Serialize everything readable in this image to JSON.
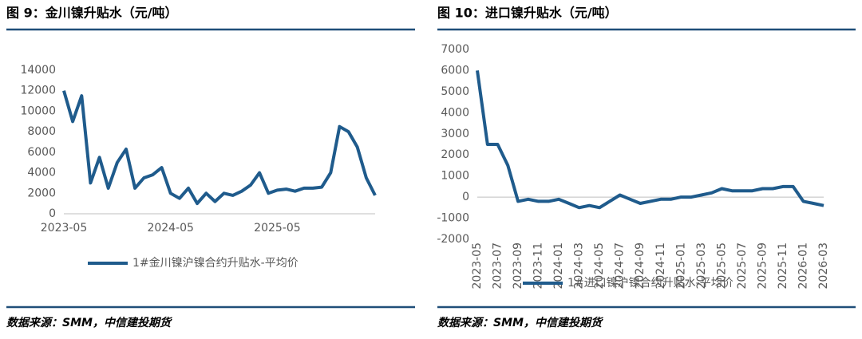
{
  "chart_data": [
    {
      "type": "line",
      "title": "图 9：金川镍升贴水（元/吨）",
      "categories": [
        "2023-05",
        null,
        null,
        null,
        null,
        null,
        null,
        null,
        null,
        null,
        null,
        null,
        "2024-05",
        null,
        null,
        null,
        null,
        null,
        null,
        null,
        null,
        null,
        null,
        null,
        "2025-05",
        null,
        null,
        null,
        null,
        null,
        null,
        null,
        null,
        null,
        null,
        null
      ],
      "series": [
        {
          "name": "1#金川镍沪镍合约升贴水-平均价",
          "color": "#1f5b8c",
          "values": [
            12000,
            9000,
            11500,
            3000,
            5500,
            2500,
            5000,
            6300,
            2500,
            3500,
            3800,
            4500,
            2000,
            1500,
            2500,
            1000,
            2000,
            1200,
            2000,
            1800,
            2200,
            2800,
            4000,
            2000,
            2300,
            2400,
            2200,
            2500,
            2500,
            2600,
            4000,
            8500,
            8000,
            6500,
            3500,
            1800
          ]
        }
      ],
      "ylim": [
        0,
        14000
      ],
      "yticks": [
        0,
        2000,
        4000,
        6000,
        8000,
        10000,
        12000,
        14000
      ],
      "source": "数据来源：SMM，中信建投期货"
    },
    {
      "type": "line",
      "title": "图 10：进口镍升贴水（元/吨）",
      "categories": [
        "2023-05",
        null,
        "2023-07",
        null,
        "2023-09",
        null,
        "2023-11",
        null,
        "2024-01",
        null,
        "2024-03",
        null,
        "2024-05",
        null,
        "2024-07",
        null,
        "2024-09",
        null,
        "2024-11",
        null,
        "2025-01",
        null,
        "2025-03",
        null,
        "2025-05",
        null,
        "2025-07",
        null,
        "2025-09",
        null,
        "2025-11",
        null,
        "2026-01",
        null,
        "2026-03"
      ],
      "series": [
        {
          "name": "1#进口镍沪镍合约升贴水-平均价",
          "color": "#1f5b8c",
          "values": [
            6000,
            2500,
            2500,
            1500,
            -200,
            -100,
            -200,
            -200,
            -100,
            -300,
            -500,
            -400,
            -500,
            -200,
            100,
            -100,
            -300,
            -200,
            -100,
            -100,
            0,
            0,
            100,
            200,
            400,
            300,
            300,
            300,
            400,
            400,
            500,
            500,
            -200,
            -300,
            -400
          ]
        }
      ],
      "ylim": [
        -2000,
        7000
      ],
      "yticks": [
        -2000,
        -1000,
        0,
        1000,
        2000,
        3000,
        4000,
        5000,
        6000,
        7000
      ],
      "source": "数据来源：SMM，中信建投期货"
    }
  ]
}
